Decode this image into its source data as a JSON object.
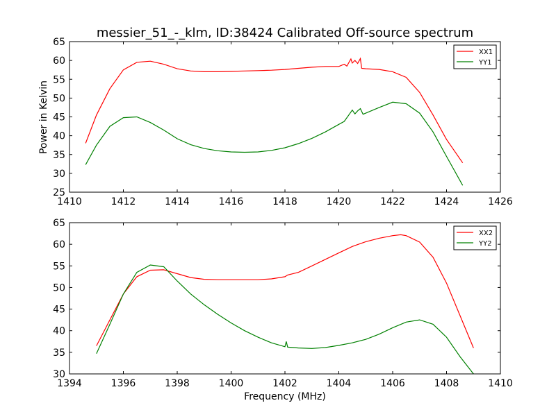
{
  "title": "messier_51_-_klm, ID:38424 Calibrated Off-source spectrum",
  "colors": {
    "red": "#ff0000",
    "green": "#008000"
  },
  "chart_data": [
    {
      "type": "line",
      "title": "messier_51_-_klm, ID:38424 Calibrated Off-source spectrum",
      "xlabel": "",
      "ylabel": "Power in Kelvin",
      "xlim": [
        1410,
        1426
      ],
      "ylim": [
        25,
        65
      ],
      "xticks": [
        1410,
        1412,
        1414,
        1416,
        1418,
        1420,
        1422,
        1424,
        1426
      ],
      "yticks": [
        25,
        30,
        35,
        40,
        45,
        50,
        55,
        60,
        65
      ],
      "grid": false,
      "legend": "top-right",
      "series": [
        {
          "name": "XX1",
          "color": "#ff0000",
          "x": [
            1410.6,
            1411.0,
            1411.5,
            1412.0,
            1412.5,
            1413.0,
            1413.5,
            1414.0,
            1414.5,
            1415.0,
            1415.5,
            1416.0,
            1416.5,
            1417.0,
            1417.5,
            1418.0,
            1418.5,
            1419.0,
            1419.5,
            1420.0,
            1420.2,
            1420.3,
            1420.45,
            1420.5,
            1420.6,
            1420.7,
            1420.8,
            1420.85,
            1421.0,
            1421.5,
            1422.0,
            1422.5,
            1423.0,
            1423.5,
            1424.0,
            1424.6
          ],
          "y": [
            38.0,
            45.5,
            52.5,
            57.5,
            59.5,
            59.8,
            59.0,
            57.8,
            57.2,
            57.0,
            57.0,
            57.1,
            57.2,
            57.3,
            57.4,
            57.6,
            57.9,
            58.2,
            58.4,
            58.4,
            59.0,
            58.5,
            60.4,
            59.3,
            60.0,
            59.2,
            60.5,
            57.9,
            57.8,
            57.6,
            57.0,
            55.5,
            51.5,
            45.5,
            39.0,
            32.8
          ]
        },
        {
          "name": "YY1",
          "color": "#008000",
          "x": [
            1410.6,
            1411.0,
            1411.5,
            1412.0,
            1412.5,
            1413.0,
            1413.5,
            1414.0,
            1414.5,
            1415.0,
            1415.5,
            1416.0,
            1416.5,
            1417.0,
            1417.5,
            1418.0,
            1418.5,
            1419.0,
            1419.5,
            1420.0,
            1420.2,
            1420.4,
            1420.5,
            1420.6,
            1420.7,
            1420.8,
            1420.9,
            1421.0,
            1421.5,
            1422.0,
            1422.5,
            1423.0,
            1423.5,
            1424.0,
            1424.6
          ],
          "y": [
            32.3,
            37.5,
            42.5,
            44.8,
            45.0,
            43.5,
            41.5,
            39.2,
            37.6,
            36.6,
            36.0,
            35.7,
            35.6,
            35.7,
            36.1,
            36.8,
            37.9,
            39.3,
            41.0,
            43.0,
            43.8,
            45.8,
            46.8,
            45.8,
            46.6,
            47.2,
            45.7,
            46.0,
            47.5,
            48.9,
            48.5,
            46.0,
            41.0,
            34.5,
            26.8
          ]
        }
      ]
    },
    {
      "type": "line",
      "title": "",
      "xlabel": "Frequency (MHz)",
      "ylabel": "",
      "xlim": [
        1394,
        1410
      ],
      "ylim": [
        30,
        65
      ],
      "xticks": [
        1394,
        1396,
        1398,
        1400,
        1402,
        1404,
        1406,
        1408,
        1410
      ],
      "yticks": [
        30,
        35,
        40,
        45,
        50,
        55,
        60,
        65
      ],
      "grid": false,
      "legend": "top-right",
      "series": [
        {
          "name": "XX2",
          "color": "#ff0000",
          "x": [
            1395.0,
            1395.5,
            1396.0,
            1396.5,
            1397.0,
            1397.5,
            1398.0,
            1398.5,
            1399.0,
            1399.5,
            1400.0,
            1400.5,
            1401.0,
            1401.5,
            1402.0,
            1402.1,
            1402.5,
            1403.0,
            1403.5,
            1404.0,
            1404.5,
            1405.0,
            1405.5,
            1406.0,
            1406.3,
            1406.5,
            1407.0,
            1407.5,
            1408.0,
            1408.5,
            1409.0
          ],
          "y": [
            36.5,
            42.5,
            48.5,
            52.5,
            54.0,
            54.1,
            53.2,
            52.3,
            51.9,
            51.8,
            51.8,
            51.8,
            51.8,
            52.0,
            52.5,
            52.9,
            53.5,
            55.0,
            56.5,
            58.0,
            59.5,
            60.6,
            61.4,
            62.0,
            62.2,
            62.0,
            60.5,
            57.0,
            51.0,
            43.5,
            36.0
          ]
        },
        {
          "name": "YY2",
          "color": "#008000",
          "x": [
            1395.0,
            1395.5,
            1396.0,
            1396.5,
            1397.0,
            1397.5,
            1398.0,
            1398.5,
            1399.0,
            1399.5,
            1400.0,
            1400.5,
            1401.0,
            1401.5,
            1402.0,
            1402.05,
            1402.1,
            1402.5,
            1403.0,
            1403.5,
            1404.0,
            1404.5,
            1405.0,
            1405.5,
            1406.0,
            1406.5,
            1407.0,
            1407.5,
            1408.0,
            1408.5,
            1409.0
          ],
          "y": [
            34.7,
            41.5,
            48.5,
            53.5,
            55.2,
            54.8,
            51.5,
            48.5,
            46.0,
            43.8,
            41.8,
            40.0,
            38.5,
            37.2,
            36.3,
            37.5,
            36.2,
            36.0,
            35.9,
            36.1,
            36.6,
            37.2,
            38.0,
            39.2,
            40.7,
            42.0,
            42.5,
            41.5,
            38.5,
            34.0,
            30.0
          ]
        }
      ]
    }
  ]
}
